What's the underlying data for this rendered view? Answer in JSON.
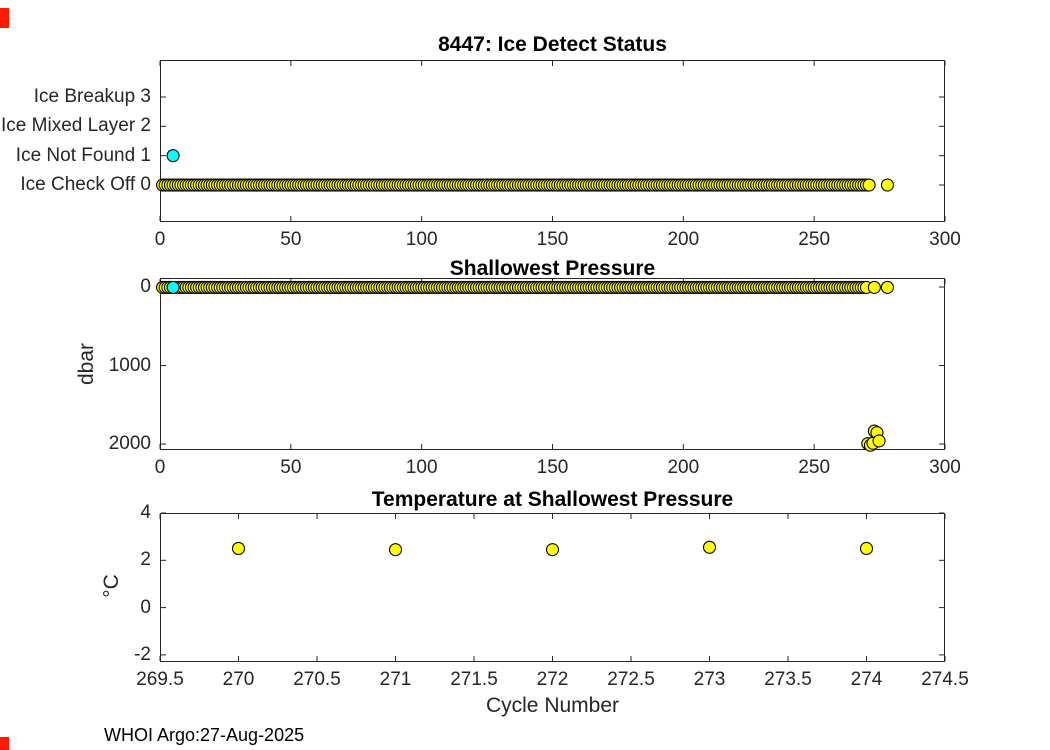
{
  "window": {
    "background": "#ffffff",
    "footer_text": "WHOI Argo:27-Aug-2025",
    "red_mark_color": "#ff1a00",
    "axis_color": "#262626",
    "marker_edge_color": "#000000",
    "yellow": "#ffff00",
    "cyan": "#00ffff"
  },
  "chart_data": [
    {
      "type": "scatter",
      "title": "8447: Ice Detect Status",
      "xlabel": "",
      "ylabel": "",
      "xlim": [
        0,
        300
      ],
      "ylim": [
        -1.26,
        4.26
      ],
      "y_reversed": false,
      "grid": false,
      "xticks": [
        {
          "v": 0,
          "label": "0"
        },
        {
          "v": 50,
          "label": "50"
        },
        {
          "v": 100,
          "label": "100"
        },
        {
          "v": 150,
          "label": "150"
        },
        {
          "v": 200,
          "label": "200"
        },
        {
          "v": 250,
          "label": "250"
        },
        {
          "v": 300,
          "label": "300"
        }
      ],
      "yticks": [
        {
          "v": 3,
          "label": "Ice Breakup 3"
        },
        {
          "v": 2,
          "label": "Ice Mixed Layer 2"
        },
        {
          "v": 1,
          "label": "Ice Not Found 1"
        },
        {
          "v": 0,
          "label": "Ice Check Off 0"
        }
      ],
      "marker": {
        "size": 6
      },
      "series": [
        {
          "name": "ice-check-off",
          "color": "#ffff00",
          "points_range": {
            "from": 1,
            "to": 271,
            "step": 1,
            "y": 0
          },
          "points": [
            [
              278,
              0
            ]
          ]
        },
        {
          "name": "ice-not-found",
          "color": "#00ffff",
          "points": [
            [
              5,
              1
            ]
          ]
        }
      ]
    },
    {
      "type": "scatter",
      "title": "Shallowest Pressure",
      "xlabel": "",
      "ylabel": "dbar",
      "xlim": [
        0,
        300
      ],
      "ylim": [
        -115,
        2076
      ],
      "y_reversed": true,
      "grid": false,
      "xticks": [
        {
          "v": 0,
          "label": "0"
        },
        {
          "v": 50,
          "label": "50"
        },
        {
          "v": 100,
          "label": "100"
        },
        {
          "v": 150,
          "label": "150"
        },
        {
          "v": 200,
          "label": "200"
        },
        {
          "v": 250,
          "label": "250"
        },
        {
          "v": 300,
          "label": "300"
        }
      ],
      "yticks": [
        {
          "v": 0,
          "label": "0"
        },
        {
          "v": 1000,
          "label": "1000"
        },
        {
          "v": 2000,
          "label": "2000"
        }
      ],
      "marker": {
        "size": 6
      },
      "series": [
        {
          "name": "shallowest-pressure",
          "color": "#ffff00",
          "points_range": {
            "from": 1,
            "to": 270,
            "step": 1,
            "y": 5
          },
          "points": [
            [
              273,
              5
            ],
            [
              278,
              5
            ],
            [
              270.5,
              1995
            ],
            [
              271.5,
              2015
            ],
            [
              272.5,
              1990
            ],
            [
              273,
              1835
            ],
            [
              274,
              1855
            ],
            [
              274.8,
              1960
            ]
          ]
        },
        {
          "name": "shallowest-pressure-ice",
          "color": "#00ffff",
          "points": [
            [
              5,
              5
            ]
          ]
        }
      ]
    },
    {
      "type": "scatter",
      "title": "Temperature at Shallowest Pressure",
      "xlabel": "Cycle Number",
      "ylabel": "°C",
      "xlim": [
        269.5,
        274.5
      ],
      "ylim": [
        -2.3,
        4
      ],
      "y_reversed": false,
      "grid": false,
      "xticks": [
        {
          "v": 269.5,
          "label": "269.5"
        },
        {
          "v": 270,
          "label": "270"
        },
        {
          "v": 270.5,
          "label": "270.5"
        },
        {
          "v": 271,
          "label": "271"
        },
        {
          "v": 271.5,
          "label": "271.5"
        },
        {
          "v": 272,
          "label": "272"
        },
        {
          "v": 272.5,
          "label": "272.5"
        },
        {
          "v": 273,
          "label": "273"
        },
        {
          "v": 273.5,
          "label": "273.5"
        },
        {
          "v": 274,
          "label": "274"
        },
        {
          "v": 274.5,
          "label": "274.5"
        }
      ],
      "yticks": [
        {
          "v": 4,
          "label": "4"
        },
        {
          "v": 2,
          "label": "2"
        },
        {
          "v": 0,
          "label": "0"
        },
        {
          "v": -2,
          "label": "-2"
        }
      ],
      "marker": {
        "size": 6
      },
      "series": [
        {
          "name": "temperature",
          "color": "#ffff00",
          "points": [
            [
              270,
              2.5
            ],
            [
              271,
              2.45
            ],
            [
              272,
              2.45
            ],
            [
              273,
              2.55
            ],
            [
              274,
              2.5
            ]
          ]
        }
      ]
    }
  ]
}
